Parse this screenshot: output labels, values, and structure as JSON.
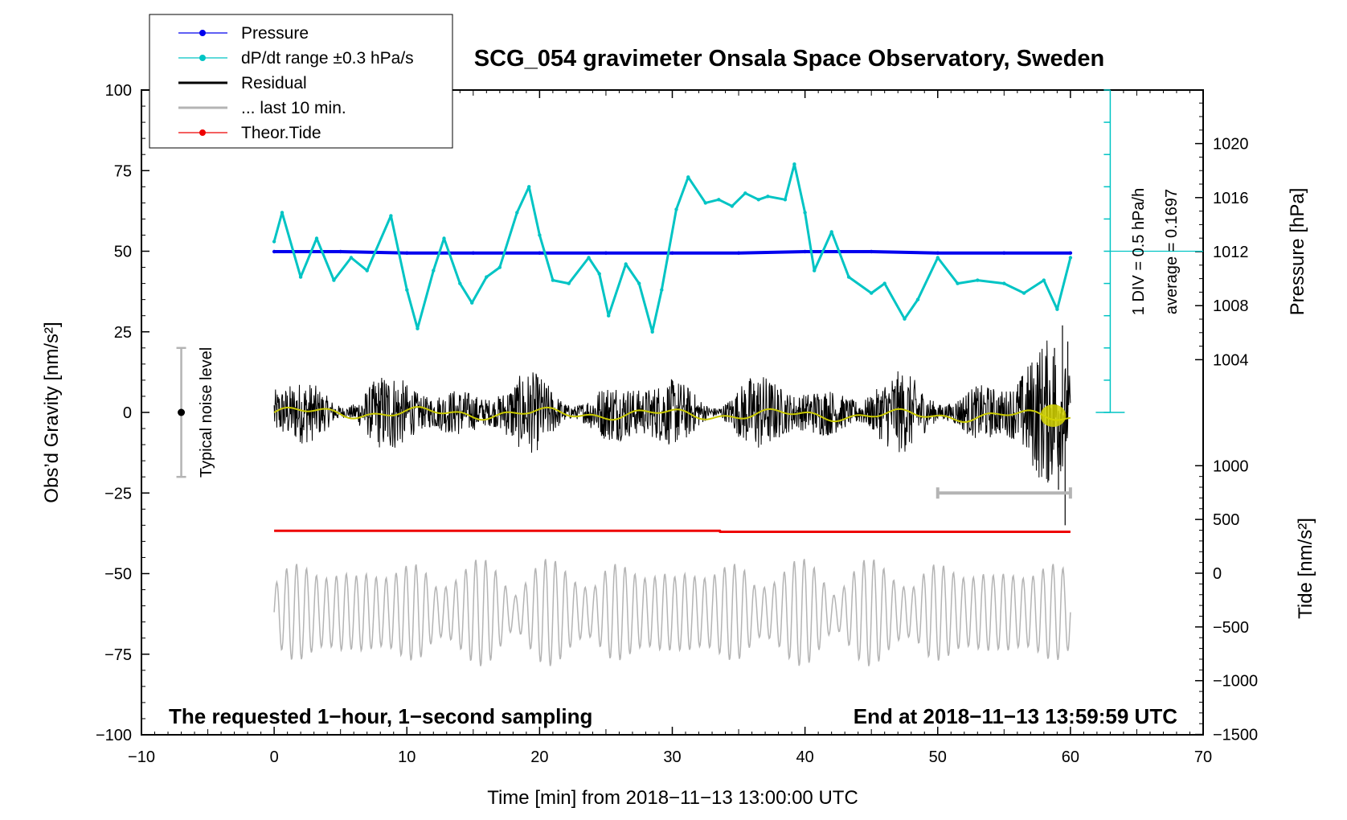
{
  "chart_data": {
    "type": "line",
    "title": "SCG_054 gravimeter Onsala Space Observatory, Sweden",
    "xlabel": "Time [min] from 2018−11−13 13:00:00 UTC",
    "ylabel_left": "Obs’d Gravity [nm/s²]",
    "ylabel_right_pressure": "Pressure [hPa]",
    "ylabel_right_tide": "Tide [nm/s²]",
    "xlim": [
      -10,
      70
    ],
    "ylim_gravity": [
      -100,
      100
    ],
    "ylim_pressure": [
      1000,
      1024
    ],
    "ylim_tide": [
      -1500,
      1500
    ],
    "x_ticks": [
      "−10",
      "0",
      "10",
      "20",
      "30",
      "40",
      "50",
      "60",
      "70"
    ],
    "x_tick_values": [
      -10,
      0,
      10,
      20,
      30,
      40,
      50,
      60,
      70
    ],
    "gravity_ticks": [
      "100",
      "75",
      "50",
      "25",
      "0",
      "−25",
      "−50",
      "−75",
      "−100"
    ],
    "gravity_tick_values": [
      100,
      75,
      50,
      25,
      0,
      -25,
      -50,
      -75,
      -100
    ],
    "pressure_ticks": [
      "1020",
      "1016",
      "1012",
      "1008",
      "1004"
    ],
    "pressure_tick_values": [
      1020,
      1016,
      1012,
      1008,
      1004
    ],
    "tide_ticks": [
      "1000",
      "500",
      "0",
      "−500",
      "−1000",
      "−1500"
    ],
    "tide_tick_values": [
      1000,
      500,
      0,
      -500,
      -1000,
      -1500
    ],
    "legend": {
      "placement": "top-left",
      "entries": [
        {
          "label": "Pressure",
          "color": "#0000ee",
          "marker": true
        },
        {
          "label": "dP/dt range ±0.3 hPa/s",
          "color": "#00c4c4",
          "marker": true
        },
        {
          "label": "Residual",
          "color": "#000000",
          "marker": false
        },
        {
          "label": "... last 10 min.",
          "color": "#b4b4b4",
          "marker": false
        },
        {
          "label": "Theor.Tide",
          "color": "#ee0000",
          "marker": true
        }
      ]
    },
    "series": [
      {
        "name": "Pressure",
        "color": "#0000ee",
        "axis": "pressure",
        "x": [
          0,
          5,
          10,
          15,
          20,
          25,
          30,
          35,
          40,
          45,
          50,
          55,
          60
        ],
        "values": [
          1012.0,
          1012.0,
          1011.9,
          1011.9,
          1011.9,
          1011.9,
          1011.9,
          1011.9,
          1012.0,
          1012.0,
          1011.9,
          1011.9,
          1011.9
        ]
      },
      {
        "name": "dP/dt range ±0.3 hPa/s",
        "color": "#00c4c4",
        "axis": "gravity",
        "x": [
          0,
          0.6,
          2,
          3.2,
          4.5,
          5.8,
          7,
          8.8,
          10,
          10.8,
          12,
          12.8,
          14,
          14.9,
          16,
          17,
          18.3,
          19.2,
          20,
          21,
          22.2,
          23.7,
          24.5,
          25.2,
          26.5,
          27.5,
          28.5,
          29.2,
          30.3,
          31.2,
          32.5,
          33.5,
          34.5,
          35.5,
          36.5,
          37.2,
          38.5,
          39.2,
          40,
          40.7,
          42,
          43.3,
          45,
          46,
          47.5,
          48.5,
          50,
          51.5,
          53,
          55,
          56.5,
          58,
          59,
          60
        ],
        "values": [
          53,
          62,
          42,
          54,
          41,
          48,
          44,
          61,
          38,
          26,
          44,
          54,
          40,
          34,
          42,
          45,
          62,
          70,
          55,
          41,
          40,
          48,
          43,
          30,
          46,
          40,
          25,
          38,
          63,
          73,
          65,
          66,
          64,
          68,
          66,
          67,
          66,
          77,
          62,
          44,
          56,
          42,
          37,
          40,
          29,
          35,
          48,
          40,
          41,
          40,
          37,
          41,
          32,
          48
        ]
      },
      {
        "name": "Theor.Tide",
        "color": "#ee0000",
        "axis": "tide",
        "x": [
          0,
          33.6,
          33.6,
          60
        ],
        "values": [
          395,
          395,
          385,
          385
        ]
      }
    ],
    "residual": {
      "x_range": [
        0,
        60
      ],
      "center": 0,
      "typical_amplitude": 10,
      "max_amplitude": 28
    },
    "last_10_min_bar": {
      "x_range": [
        50,
        60
      ],
      "y": -25,
      "color": "#b4b4b4"
    },
    "noise_level": {
      "x": -7,
      "center": 0,
      "range": [
        -20,
        20
      ],
      "label": "Typical noise level"
    },
    "pressure_scale": {
      "div_label": "1 DIV = 0.5 hPa/h",
      "avg_label": "average = 0.1697",
      "x": 63,
      "y_range": [
        0,
        100
      ],
      "divisions": 10,
      "color": "#00c4c4"
    },
    "annotations": {
      "bottom_left": "The requested 1−hour, 1−second sampling",
      "bottom_right": "End at 2018−11−13 13:59:59 UTC"
    },
    "grid": false
  }
}
